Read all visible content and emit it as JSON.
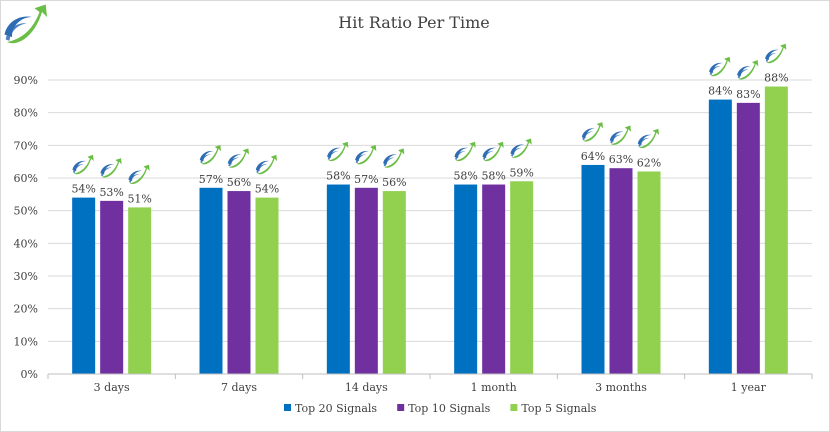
{
  "colors": {
    "top20": "#0070C0",
    "top10": "#7030A0",
    "top5": "#92D050",
    "grid": "#D9D9D9",
    "axis": "#BFBFBF",
    "text": "#404040",
    "logo_blue": "#2E6DB4",
    "logo_green": "#6BBE45"
  },
  "icons": {
    "corner_logo": "brand-arrow-logo-icon",
    "bar_marker": "brand-arrow-logo-icon"
  },
  "chart_data": {
    "type": "bar",
    "title": "Hit Ratio Per Time",
    "xlabel": "",
    "ylabel": "",
    "categories": [
      "3 days",
      "7 days",
      "14 days",
      "1 month",
      "3 months",
      "1 year"
    ],
    "ylim": [
      0,
      90
    ],
    "yticks": [
      0,
      10,
      20,
      30,
      40,
      50,
      60,
      70,
      80,
      90
    ],
    "ytick_labels": [
      "0%",
      "10%",
      "20%",
      "30%",
      "40%",
      "50%",
      "60%",
      "70%",
      "80%",
      "90%"
    ],
    "grid": true,
    "legend_position": "bottom",
    "series": [
      {
        "name": "Top 20 Signals",
        "color": "#0070C0",
        "values": [
          54,
          57,
          58,
          58,
          64,
          84
        ],
        "labels": [
          "54%",
          "57%",
          "58%",
          "58%",
          "64%",
          "84%"
        ]
      },
      {
        "name": "Top 10 Signals",
        "color": "#7030A0",
        "values": [
          53,
          56,
          57,
          58,
          63,
          83
        ],
        "labels": [
          "53%",
          "56%",
          "57%",
          "58%",
          "63%",
          "83%"
        ]
      },
      {
        "name": "Top 5 Signals",
        "color": "#92D050",
        "values": [
          51,
          54,
          56,
          59,
          62,
          88
        ],
        "labels": [
          "51%",
          "54%",
          "56%",
          "59%",
          "62%",
          "88%"
        ]
      }
    ]
  }
}
